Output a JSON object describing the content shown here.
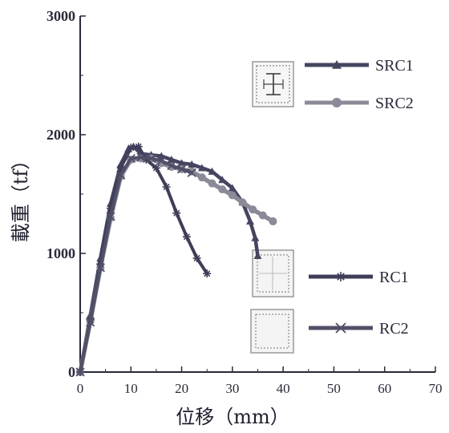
{
  "chart_data": {
    "type": "line",
    "xlabel": "位移（mm）",
    "ylabel": "載重（tf）",
    "xlim": [
      0,
      70
    ],
    "ylim": [
      0,
      3000
    ],
    "x_ticks": [
      "0",
      "10",
      "20",
      "30",
      "40",
      "50",
      "60",
      "70"
    ],
    "y_ticks": [
      "0",
      "1000",
      "2000",
      "3000"
    ],
    "legend_position": "right",
    "grid": false,
    "series": [
      {
        "name": "SRC1",
        "color": "#454560",
        "marker": "triangle",
        "section_icon": "src-steel-section-icon",
        "x": [
          0,
          2,
          4,
          6,
          8,
          9.5,
          10.5,
          12,
          14,
          16,
          18,
          20,
          22,
          24,
          26,
          28,
          30,
          32,
          33.5,
          34.5,
          35
        ],
        "y": [
          0,
          480,
          960,
          1420,
          1750,
          1880,
          1900,
          1840,
          1830,
          1820,
          1790,
          1760,
          1750,
          1720,
          1690,
          1620,
          1550,
          1430,
          1270,
          1130,
          980
        ]
      },
      {
        "name": "SRC2",
        "color": "#8a8a98",
        "marker": "circle",
        "section_icon": "src-steel-section-icon",
        "x": [
          0,
          2,
          4,
          6,
          8,
          10,
          12,
          14,
          16,
          18,
          20,
          22,
          24,
          26,
          28,
          30,
          32,
          34,
          36,
          38
        ],
        "y": [
          0,
          430,
          880,
          1300,
          1650,
          1790,
          1800,
          1800,
          1760,
          1730,
          1710,
          1690,
          1640,
          1590,
          1540,
          1490,
          1430,
          1370,
          1320,
          1270
        ]
      },
      {
        "name": "RC1",
        "color": "#3e3e58",
        "marker": "star",
        "section_icon": "rc-section-icon",
        "x": [
          0,
          2,
          4,
          6,
          8,
          10,
          11.5,
          13,
          15,
          17,
          19,
          21,
          23,
          25
        ],
        "y": [
          0,
          440,
          910,
          1380,
          1720,
          1890,
          1900,
          1790,
          1720,
          1560,
          1340,
          1140,
          960,
          830
        ]
      },
      {
        "name": "RC2",
        "color": "#505068",
        "marker": "x",
        "section_icon": "rc-section-icon",
        "x": [
          0,
          2,
          4,
          6,
          8,
          10,
          12,
          14,
          16,
          18,
          20,
          22
        ],
        "y": [
          0,
          420,
          880,
          1310,
          1660,
          1800,
          1810,
          1800,
          1780,
          1740,
          1710,
          1680
        ]
      }
    ]
  }
}
